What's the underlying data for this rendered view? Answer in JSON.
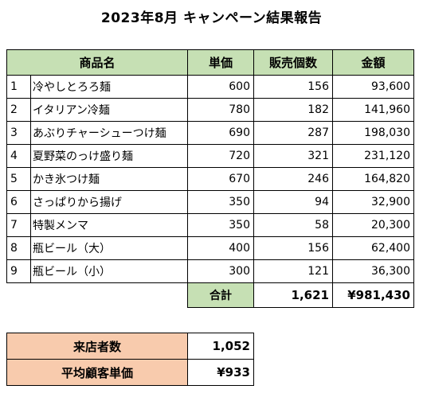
{
  "title": "2023年8月 キャンペーン結果報告",
  "colors": {
    "header_green": "#c6e0b4",
    "summary_orange": "#f8cbad"
  },
  "headers": {
    "name": "商品名",
    "price": "単価",
    "qty": "販売個数",
    "amount": "金額"
  },
  "rows": [
    {
      "no": "1",
      "name": "冷やしとろろ麺",
      "price": "600",
      "qty": "156",
      "amount": "93,600"
    },
    {
      "no": "2",
      "name": "イタリアン冷麺",
      "price": "780",
      "qty": "182",
      "amount": "141,960"
    },
    {
      "no": "3",
      "name": "あぶりチャーシューつけ麺",
      "price": "690",
      "qty": "287",
      "amount": "198,030"
    },
    {
      "no": "4",
      "name": "夏野菜のっけ盛り麺",
      "price": "720",
      "qty": "321",
      "amount": "231,120"
    },
    {
      "no": "5",
      "name": "かき氷つけ麺",
      "price": "670",
      "qty": "246",
      "amount": "164,820"
    },
    {
      "no": "6",
      "name": "さっぱりから揚げ",
      "price": "350",
      "qty": "94",
      "amount": "32,900"
    },
    {
      "no": "7",
      "name": "特製メンマ",
      "price": "350",
      "qty": "58",
      "amount": "20,300"
    },
    {
      "no": "8",
      "name": "瓶ビール（大）",
      "price": "400",
      "qty": "156",
      "amount": "62,400"
    },
    {
      "no": "9",
      "name": "瓶ビール（小）",
      "price": "300",
      "qty": "121",
      "amount": "36,300"
    }
  ],
  "total": {
    "label": "合計",
    "qty": "1,621",
    "amount": "¥981,430"
  },
  "summary": [
    {
      "label": "来店者数",
      "value": "1,052"
    },
    {
      "label": "平均顧客単価",
      "value": "¥933"
    }
  ]
}
